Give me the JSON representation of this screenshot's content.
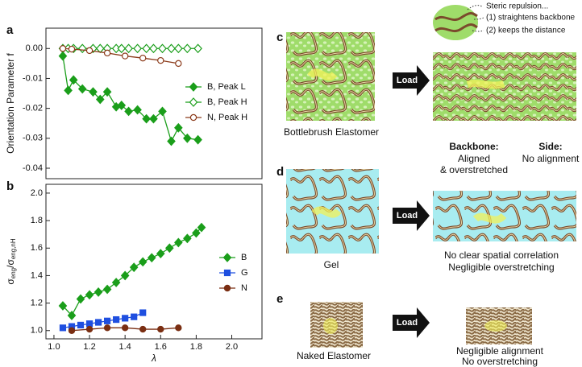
{
  "chart_data": [
    {
      "panel": "a",
      "type": "line",
      "ylabel": "Orientation Parameter f",
      "xlim": [
        0.955,
        2.17
      ],
      "ylim": [
        -0.0435,
        0.0068
      ],
      "yticks": [
        {
          "value": 0,
          "label": "0.00"
        },
        {
          "value": -0.01,
          "label": "-0.01"
        },
        {
          "value": -0.02,
          "label": "-0.02"
        },
        {
          "value": -0.03,
          "label": "-0.03"
        },
        {
          "value": -0.04,
          "label": "-0.04"
        }
      ],
      "legend": "right",
      "series": [
        {
          "name": "B, Peak L",
          "color": "#1a9e1a",
          "marker": "diamond",
          "filled": true,
          "x": [
            1.05,
            1.08,
            1.11,
            1.16,
            1.22,
            1.26,
            1.3,
            1.35,
            1.38,
            1.42,
            1.47,
            1.52,
            1.56,
            1.61,
            1.66,
            1.7,
            1.75,
            1.81
          ],
          "values": [
            -0.0025,
            -0.014,
            -0.0105,
            -0.0135,
            -0.0145,
            -0.017,
            -0.0145,
            -0.0195,
            -0.019,
            -0.021,
            -0.0205,
            -0.0235,
            -0.0235,
            -0.021,
            -0.031,
            -0.0265,
            -0.03,
            -0.0305
          ]
        },
        {
          "name": "B, Peak H",
          "color": "#1a9e1a",
          "marker": "diamond",
          "filled": false,
          "x": [
            1.05,
            1.08,
            1.11,
            1.16,
            1.22,
            1.26,
            1.3,
            1.35,
            1.38,
            1.42,
            1.47,
            1.52,
            1.56,
            1.61,
            1.66,
            1.7,
            1.75,
            1.81
          ],
          "values": [
            0,
            0,
            0,
            0,
            0,
            0,
            0,
            0,
            0,
            0,
            0,
            0,
            0,
            0,
            0,
            0,
            0,
            0
          ]
        },
        {
          "name": "N, Peak H",
          "color": "#8b3a1a",
          "marker": "circle",
          "filled": false,
          "x": [
            1.05,
            1.1,
            1.2,
            1.3,
            1.4,
            1.5,
            1.6,
            1.7
          ],
          "values": [
            0,
            -0.0002,
            -0.0007,
            -0.0015,
            -0.0025,
            -0.0032,
            -0.004,
            -0.005
          ]
        }
      ]
    },
    {
      "panel": "b",
      "type": "line",
      "ylabel": [
        "σ",
        "eng",
        "/σ",
        "eng,nH"
      ],
      "xlabel": "λ",
      "xlim": [
        0.955,
        2.17
      ],
      "ylim": [
        0.94,
        2.064
      ],
      "xticks": [
        {
          "value": 1,
          "label": "1.0"
        },
        1.2,
        1.4,
        1.6,
        1.8,
        {
          "value": 2,
          "label": "2.0"
        }
      ],
      "yticks": [
        {
          "value": 1,
          "label": "1.0"
        },
        1.2,
        1.4,
        1.6,
        1.8,
        {
          "value": 2,
          "label": "2.0"
        }
      ],
      "legend": "right",
      "series": [
        {
          "name": "B",
          "color": "#1a9e1a",
          "marker": "diamond",
          "filled": true,
          "x": [
            1.05,
            1.1,
            1.15,
            1.2,
            1.25,
            1.3,
            1.35,
            1.4,
            1.45,
            1.5,
            1.55,
            1.6,
            1.65,
            1.7,
            1.75,
            1.8,
            1.83
          ],
          "values": [
            1.18,
            1.11,
            1.23,
            1.26,
            1.28,
            1.3,
            1.35,
            1.4,
            1.46,
            1.5,
            1.53,
            1.56,
            1.6,
            1.64,
            1.67,
            1.71,
            1.75
          ]
        },
        {
          "name": "G",
          "color": "#1f4fe0",
          "marker": "square",
          "filled": true,
          "x": [
            1.05,
            1.1,
            1.15,
            1.2,
            1.25,
            1.3,
            1.35,
            1.4,
            1.45,
            1.5
          ],
          "values": [
            1.02,
            1.03,
            1.04,
            1.05,
            1.06,
            1.07,
            1.08,
            1.09,
            1.1,
            1.13
          ]
        },
        {
          "name": "N",
          "color": "#7a2e12",
          "marker": "circle",
          "filled": true,
          "x": [
            1.1,
            1.2,
            1.3,
            1.4,
            1.5,
            1.6,
            1.7
          ],
          "values": [
            1.0,
            1.01,
            1.02,
            1.02,
            1.01,
            1.01,
            1.02
          ]
        }
      ]
    }
  ],
  "diagram": {
    "c": {
      "panel": "c",
      "note": [
        "Steric repulsion...",
        "(1) straightens backbone",
        "(2) keeps the distance"
      ],
      "arrow": "Load",
      "name": "Bottlebrush Elastomer",
      "backbone": [
        "Backbone:",
        "Aligned",
        "& overstretched"
      ],
      "side": [
        "Side:",
        "No alignment"
      ]
    },
    "d": {
      "panel": "d",
      "arrow": "Load",
      "name": "Gel",
      "result": [
        "No clear spatial correlation",
        "Negligible overstretching"
      ]
    },
    "e": {
      "panel": "e",
      "arrow": "Load",
      "name": "Naked Elastomer",
      "result": [
        "Negligible alignment",
        "No overstretching"
      ]
    }
  }
}
